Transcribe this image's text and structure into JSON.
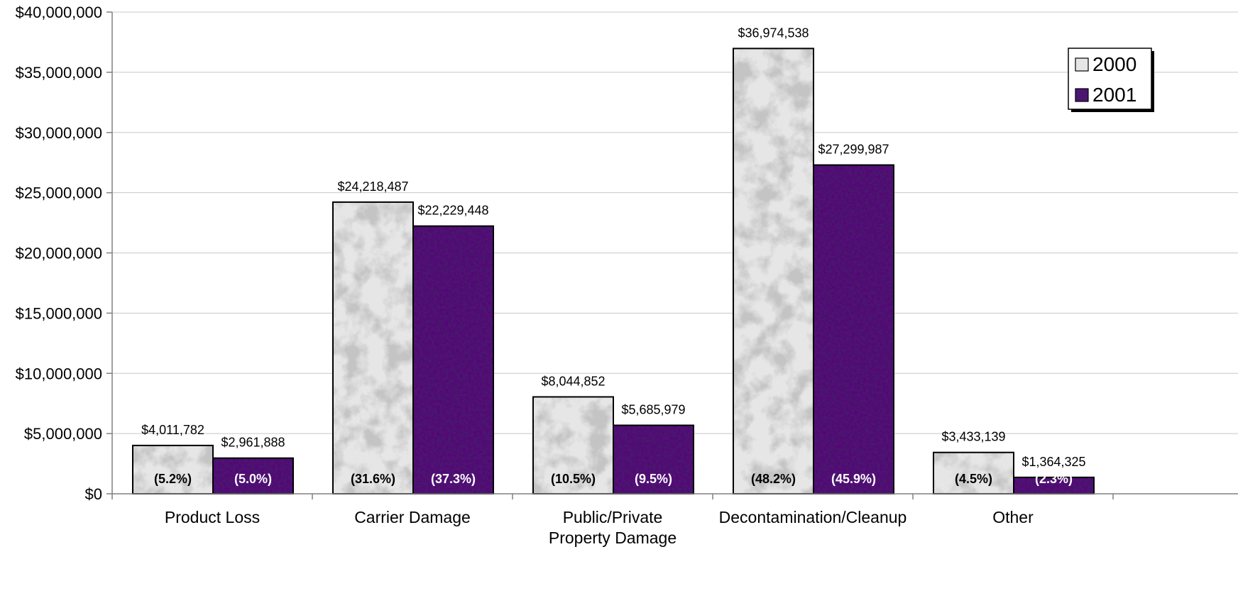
{
  "chart_data": {
    "type": "bar",
    "title": "",
    "xlabel": "",
    "ylabel": "",
    "ylim": [
      0,
      40000000
    ],
    "yticks": [
      {
        "value": 0,
        "label": "$0"
      },
      {
        "value": 5000000,
        "label": "$5,000,000"
      },
      {
        "value": 10000000,
        "label": "$10,000,000"
      },
      {
        "value": 15000000,
        "label": "$15,000,000"
      },
      {
        "value": 20000000,
        "label": "$20,000,000"
      },
      {
        "value": 25000000,
        "label": "$25,000,000"
      },
      {
        "value": 30000000,
        "label": "$30,000,000"
      },
      {
        "value": 35000000,
        "label": "$35,000,000"
      },
      {
        "value": 40000000,
        "label": "$40,000,000"
      }
    ],
    "grid": true,
    "legend_position": "top-right",
    "categories": [
      [
        "Product Loss"
      ],
      [
        "Carrier Damage"
      ],
      [
        "Public/Private",
        "Property Damage"
      ],
      [
        "Decontamination/Cleanup"
      ],
      [
        "Other"
      ]
    ],
    "series": [
      {
        "name": "2000",
        "color": "#e6e6e6",
        "label_color": "#000000",
        "values": [
          4011782,
          24218487,
          8044852,
          36974538,
          3433139
        ],
        "value_labels": [
          "$4,011,782",
          "$24,218,487",
          "$8,044,852",
          "$36,974,538",
          "$3,433,139"
        ],
        "percent_labels": [
          "(5.2%)",
          "(31.6%)",
          "(10.5%)",
          "(48.2%)",
          "(4.5%)"
        ]
      },
      {
        "name": "2001",
        "color": "#4b1670",
        "label_color": "#ffffff",
        "values": [
          2961888,
          22229448,
          5685979,
          27299987,
          1364325
        ],
        "value_labels": [
          "$2,961,888",
          "$22,229,448",
          "$5,685,979",
          "$27,299,987",
          "$1,364,325"
        ],
        "percent_labels": [
          "(5.0%)",
          "(37.3%)",
          "(9.5%)",
          "(45.9%)",
          "(2.3%)"
        ]
      }
    ]
  }
}
